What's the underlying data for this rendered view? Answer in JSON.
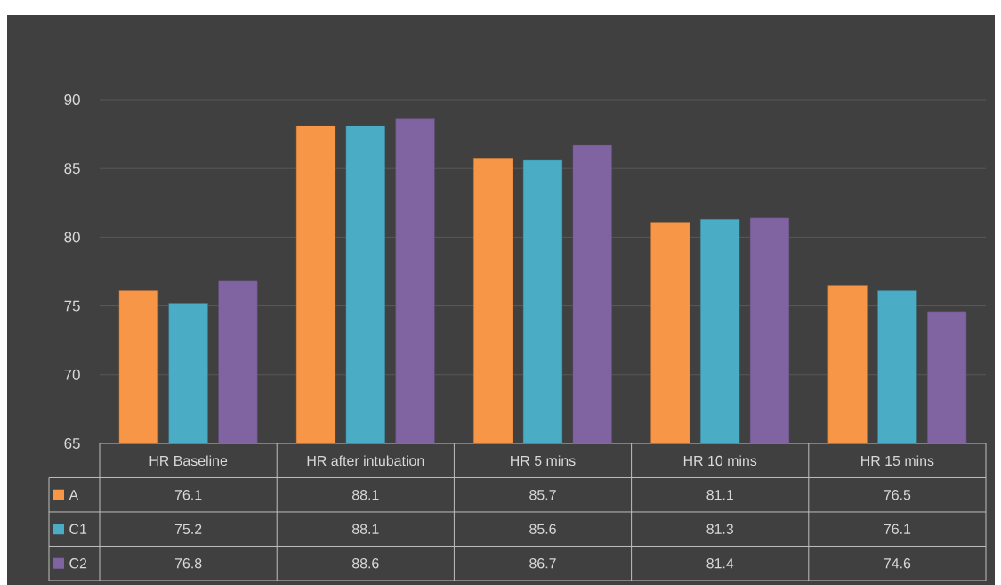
{
  "chart_data": {
    "type": "bar",
    "categories": [
      "HR Baseline",
      "HR after intubation",
      "HR 5 mins",
      "HR 10 mins",
      "HR 15 mins"
    ],
    "series": [
      {
        "name": "A",
        "color": "#f79646",
        "values": [
          76.1,
          88.1,
          85.7,
          81.1,
          76.5
        ]
      },
      {
        "name": "C1",
        "color": "#4bacc6",
        "values": [
          75.2,
          88.1,
          85.6,
          81.3,
          76.1
        ]
      },
      {
        "name": "C2",
        "color": "#8064a2",
        "values": [
          76.8,
          88.6,
          86.7,
          81.4,
          74.6
        ]
      }
    ],
    "ylim": [
      65,
      90
    ],
    "yticks": [
      65,
      70,
      75,
      80,
      85,
      90
    ],
    "grid": "y",
    "data_labels": true,
    "legend": "bottom"
  }
}
